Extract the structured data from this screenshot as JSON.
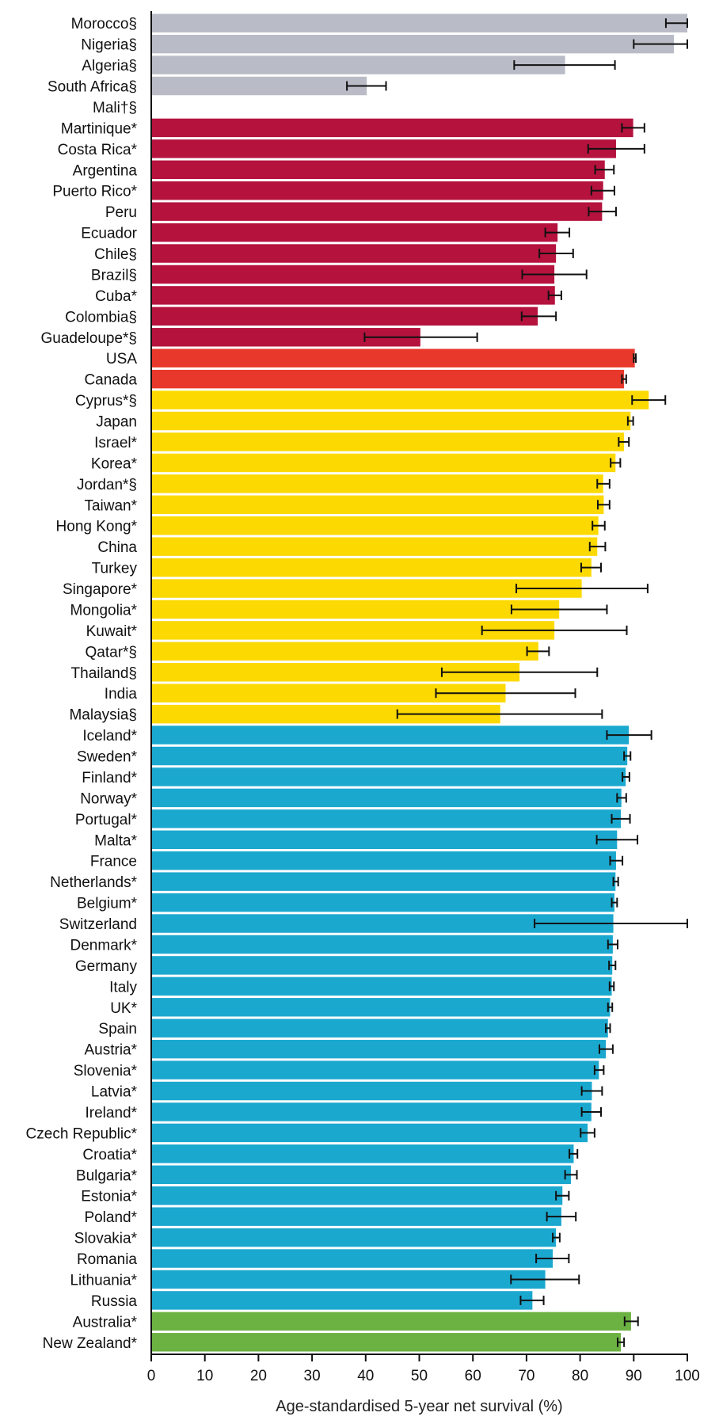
{
  "chart_data": {
    "type": "bar",
    "orientation": "horizontal",
    "xlabel": "Age-standardised 5-year net survival (%)",
    "xlim": [
      0,
      100
    ],
    "xticks": [
      0,
      10,
      20,
      30,
      40,
      50,
      60,
      70,
      80,
      90,
      100
    ],
    "grid": false,
    "legend": "none",
    "group_colors": {
      "africa": "#b9bcc6",
      "latin_america": "#b5123e",
      "north_america": "#e8382b",
      "asia": "#fcd900",
      "europe": "#1ba8cf",
      "oceania": "#6cb243"
    },
    "categories": [
      {
        "label": "Morocco§",
        "group": "africa",
        "value": 100,
        "ci": [
          96,
          100
        ]
      },
      {
        "label": "Nigeria§",
        "group": "africa",
        "value": 97.5,
        "ci": [
          90,
          100
        ]
      },
      {
        "label": "Algeria§",
        "group": "africa",
        "value": 77.2,
        "ci": [
          67.7,
          86.5
        ]
      },
      {
        "label": "South Africa§",
        "group": "africa",
        "value": 40.2,
        "ci": [
          36.5,
          43.8
        ]
      },
      {
        "label": "Mali†§",
        "group": "africa",
        "value": null,
        "ci": null
      },
      {
        "label": "Martinique*",
        "group": "latin_america",
        "value": 89.9,
        "ci": [
          87.8,
          92
        ]
      },
      {
        "label": "Costa Rica*",
        "group": "latin_america",
        "value": 86.7,
        "ci": [
          81.5,
          92
        ]
      },
      {
        "label": "Argentina",
        "group": "latin_america",
        "value": 84.6,
        "ci": [
          82.8,
          86.3
        ]
      },
      {
        "label": "Puerto Rico*",
        "group": "latin_america",
        "value": 84.3,
        "ci": [
          82.1,
          86.4
        ]
      },
      {
        "label": "Peru",
        "group": "latin_america",
        "value": 84.1,
        "ci": [
          81.6,
          86.7
        ]
      },
      {
        "label": "Ecuador",
        "group": "latin_america",
        "value": 75.8,
        "ci": [
          73.5,
          78
        ]
      },
      {
        "label": "Chile§",
        "group": "latin_america",
        "value": 75.5,
        "ci": [
          72.4,
          78.7
        ]
      },
      {
        "label": "Brazil§",
        "group": "latin_america",
        "value": 75.2,
        "ci": [
          69.2,
          81.2
        ]
      },
      {
        "label": "Cuba*",
        "group": "latin_america",
        "value": 75.3,
        "ci": [
          74.1,
          76.5
        ]
      },
      {
        "label": "Colombia§",
        "group": "latin_america",
        "value": 72.1,
        "ci": [
          69.1,
          75.5
        ]
      },
      {
        "label": "Guadeloupe*§",
        "group": "latin_america",
        "value": 50.2,
        "ci": [
          39.8,
          60.8
        ]
      },
      {
        "label": "USA",
        "group": "north_america",
        "value": 90.2,
        "ci": [
          90,
          90.4
        ]
      },
      {
        "label": "Canada",
        "group": "north_america",
        "value": 88.2,
        "ci": [
          87.8,
          88.6
        ]
      },
      {
        "label": "Cyprus*§",
        "group": "asia",
        "value": 92.8,
        "ci": [
          89.7,
          95.9
        ]
      },
      {
        "label": "Japan",
        "group": "asia",
        "value": 89.4,
        "ci": [
          88.9,
          89.9
        ]
      },
      {
        "label": "Israel*",
        "group": "asia",
        "value": 88.2,
        "ci": [
          87.2,
          89.1
        ]
      },
      {
        "label": "Korea*",
        "group": "asia",
        "value": 86.6,
        "ci": [
          85.7,
          87.5
        ]
      },
      {
        "label": "Jordan*§",
        "group": "asia",
        "value": 84.3,
        "ci": [
          83.2,
          85.5
        ]
      },
      {
        "label": "Taiwan*",
        "group": "asia",
        "value": 84.4,
        "ci": [
          83.3,
          85.5
        ]
      },
      {
        "label": "Hong Kong*",
        "group": "asia",
        "value": 83.4,
        "ci": [
          82.3,
          84.6
        ]
      },
      {
        "label": "China",
        "group": "asia",
        "value": 83.2,
        "ci": [
          81.8,
          84.7
        ]
      },
      {
        "label": "Turkey",
        "group": "asia",
        "value": 82.1,
        "ci": [
          80.2,
          83.9
        ]
      },
      {
        "label": "Singapore*",
        "group": "asia",
        "value": 80.3,
        "ci": [
          68.1,
          92.6
        ]
      },
      {
        "label": "Mongolia*",
        "group": "asia",
        "value": 76.1,
        "ci": [
          67.2,
          85
        ]
      },
      {
        "label": "Kuwait*",
        "group": "asia",
        "value": 75.2,
        "ci": [
          61.7,
          88.7
        ]
      },
      {
        "label": "Qatar*§",
        "group": "asia",
        "value": 72.2,
        "ci": [
          70.1,
          74.2
        ]
      },
      {
        "label": "Thailand§",
        "group": "asia",
        "value": 68.7,
        "ci": [
          54.2,
          83.2
        ]
      },
      {
        "label": "India",
        "group": "asia",
        "value": 66.1,
        "ci": [
          53.1,
          79.1
        ]
      },
      {
        "label": "Malaysia§",
        "group": "asia",
        "value": 65.1,
        "ci": [
          45.9,
          84.1
        ]
      },
      {
        "label": "Iceland*",
        "group": "europe",
        "value": 89.1,
        "ci": [
          85,
          93.3
        ]
      },
      {
        "label": "Sweden*",
        "group": "europe",
        "value": 88.8,
        "ci": [
          88.2,
          89.4
        ]
      },
      {
        "label": "Finland*",
        "group": "europe",
        "value": 88.5,
        "ci": [
          87.9,
          89.2
        ]
      },
      {
        "label": "Norway*",
        "group": "europe",
        "value": 87.7,
        "ci": [
          86.9,
          88.6
        ]
      },
      {
        "label": "Portugal*",
        "group": "europe",
        "value": 87.6,
        "ci": [
          85.9,
          89.3
        ]
      },
      {
        "label": "Malta*",
        "group": "europe",
        "value": 86.9,
        "ci": [
          83.1,
          90.7
        ]
      },
      {
        "label": "France",
        "group": "europe",
        "value": 86.7,
        "ci": [
          85.6,
          87.9
        ]
      },
      {
        "label": "Netherlands*",
        "group": "europe",
        "value": 86.6,
        "ci": [
          86.2,
          87.1
        ]
      },
      {
        "label": "Belgium*",
        "group": "europe",
        "value": 86.4,
        "ci": [
          85.9,
          86.9
        ]
      },
      {
        "label": "Switzerland",
        "group": "europe",
        "value": 86.2,
        "ci": [
          71.5,
          100
        ]
      },
      {
        "label": "Denmark*",
        "group": "europe",
        "value": 86.1,
        "ci": [
          85.2,
          87
        ]
      },
      {
        "label": "Germany",
        "group": "europe",
        "value": 86,
        "ci": [
          85.4,
          86.6
        ]
      },
      {
        "label": "Italy",
        "group": "europe",
        "value": 85.9,
        "ci": [
          85.5,
          86.3
        ]
      },
      {
        "label": "UK*",
        "group": "europe",
        "value": 85.6,
        "ci": [
          85.2,
          86
        ]
      },
      {
        "label": "Spain",
        "group": "europe",
        "value": 85.2,
        "ci": [
          84.8,
          85.6
        ]
      },
      {
        "label": "Austria*",
        "group": "europe",
        "value": 84.8,
        "ci": [
          83.6,
          86.1
        ]
      },
      {
        "label": "Slovenia*",
        "group": "europe",
        "value": 83.5,
        "ci": [
          82.7,
          84.4
        ]
      },
      {
        "label": "Latvia*",
        "group": "europe",
        "value": 82.2,
        "ci": [
          80.3,
          84.1
        ]
      },
      {
        "label": "Ireland*",
        "group": "europe",
        "value": 82.1,
        "ci": [
          80.3,
          83.9
        ]
      },
      {
        "label": "Czech Republic*",
        "group": "europe",
        "value": 81.4,
        "ci": [
          80.1,
          82.7
        ]
      },
      {
        "label": "Croatia*",
        "group": "europe",
        "value": 78.8,
        "ci": [
          78,
          79.5
        ]
      },
      {
        "label": "Bulgaria*",
        "group": "europe",
        "value": 78.3,
        "ci": [
          77.2,
          79.4
        ]
      },
      {
        "label": "Estonia*",
        "group": "europe",
        "value": 76.7,
        "ci": [
          75.5,
          77.9
        ]
      },
      {
        "label": "Poland*",
        "group": "europe",
        "value": 76.5,
        "ci": [
          73.8,
          79.2
        ]
      },
      {
        "label": "Slovakia*",
        "group": "europe",
        "value": 75.5,
        "ci": [
          74.9,
          76.2
        ]
      },
      {
        "label": "Romania",
        "group": "europe",
        "value": 74.9,
        "ci": [
          71.8,
          77.9
        ]
      },
      {
        "label": "Lithuania*",
        "group": "europe",
        "value": 73.5,
        "ci": [
          67.1,
          79.8
        ]
      },
      {
        "label": "Russia",
        "group": "europe",
        "value": 71.1,
        "ci": [
          68.9,
          73.2
        ]
      },
      {
        "label": "Australia*",
        "group": "oceania",
        "value": 89.5,
        "ci": [
          88.3,
          90.8
        ]
      },
      {
        "label": "New Zealand*",
        "group": "oceania",
        "value": 87.6,
        "ci": [
          87,
          88.2
        ]
      }
    ]
  }
}
